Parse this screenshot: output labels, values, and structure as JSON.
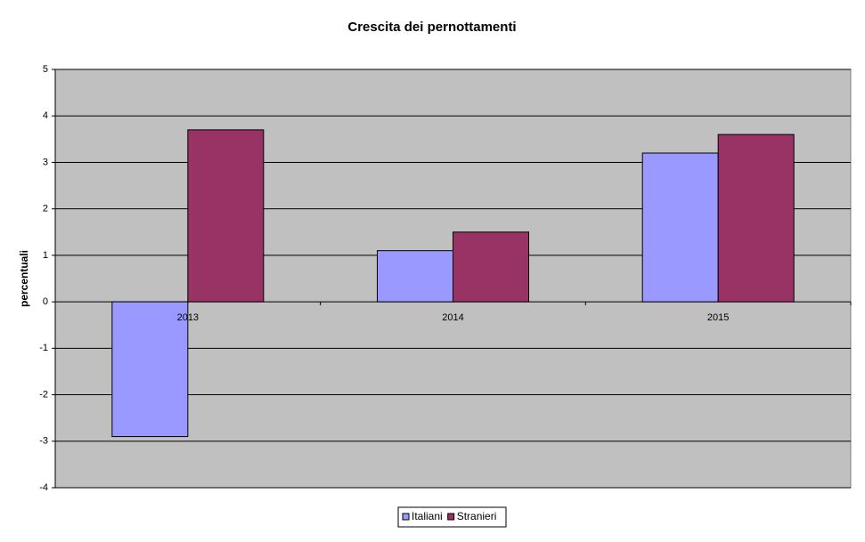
{
  "chart_data": {
    "type": "bar",
    "title": "Crescita dei pernottamenti",
    "y_label": "percentuali",
    "categories": [
      "2013",
      "2014",
      "2015"
    ],
    "series": [
      {
        "name": "Italiani",
        "color": "#9999ff",
        "values": [
          -2.9,
          1.1,
          3.2
        ]
      },
      {
        "name": "Stranieri",
        "color": "#993366",
        "values": [
          3.7,
          1.5,
          3.6
        ]
      }
    ],
    "ylim": [
      -4,
      5
    ],
    "yticks": [
      -4,
      -3,
      -2,
      -1,
      0,
      1,
      2,
      3,
      4,
      5
    ],
    "grid": true,
    "legend": "bottom"
  }
}
